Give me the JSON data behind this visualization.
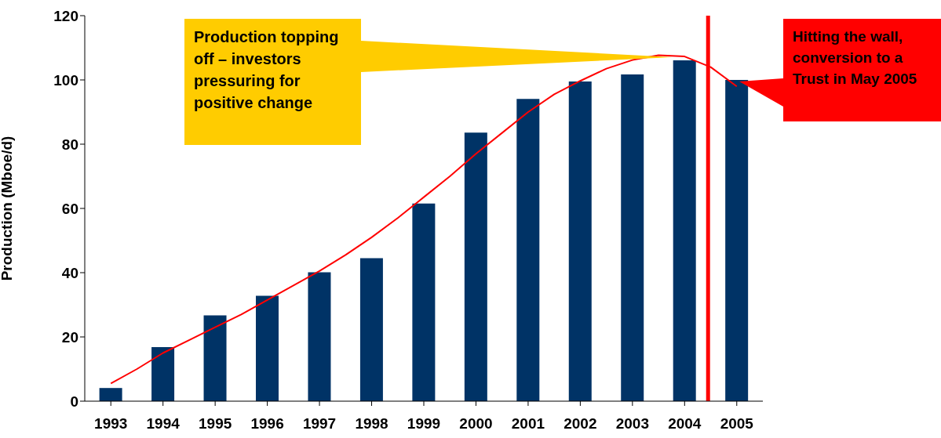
{
  "chart_data": {
    "type": "bar",
    "ylabel": "Production (Mboe/d)",
    "x": [
      1993,
      1994,
      1995,
      1996,
      1997,
      1998,
      1999,
      2000,
      2001,
      2002,
      2003,
      2004,
      2005
    ],
    "xlim": [
      1992.5,
      2005.5
    ],
    "xticks": [
      1993,
      1994,
      1995,
      1996,
      1997,
      1998,
      1999,
      2000,
      2001,
      2002,
      2003,
      2004,
      2005
    ],
    "ylim": [
      0,
      120
    ],
    "yticks": [
      0,
      20,
      40,
      60,
      80,
      100,
      120
    ],
    "series": [
      {
        "color": "#003366",
        "values": [
          4.1,
          16.8,
          26.7,
          32.8,
          40.1,
          44.5,
          61.5,
          83.6,
          94.1,
          99.5,
          101.7,
          106.1,
          100.0
        ]
      },
      {
        "type": "line",
        "color": "#ff0000",
        "x": [
          1993,
          1993.5,
          1994,
          1994.5,
          1995,
          1995.5,
          1996,
          1996.5,
          1997,
          1997.5,
          1998,
          1998.5,
          1999,
          1999.5,
          2000,
          2000.5,
          2001,
          2001.5,
          2002,
          2002.5,
          2003,
          2003.5,
          2004,
          2004.5,
          2005
        ],
        "values": [
          5.5,
          10,
          15,
          19,
          23,
          27,
          31.5,
          36,
          40.5,
          45.5,
          51,
          57,
          63.5,
          70,
          77,
          83.5,
          90,
          95.5,
          99.7,
          103.5,
          106.2,
          107.7,
          107.3,
          104,
          98
        ]
      }
    ],
    "ref_lines": [
      {
        "axis": "x",
        "value": 2004.45,
        "color": "#ff0000"
      }
    ],
    "annotations": [
      "Production topping off – investors pressuring for positive change",
      "Hitting the wall, conversion to a Trust in May 2005"
    ],
    "grid": false,
    "legend": false,
    "marker": "none"
  }
}
